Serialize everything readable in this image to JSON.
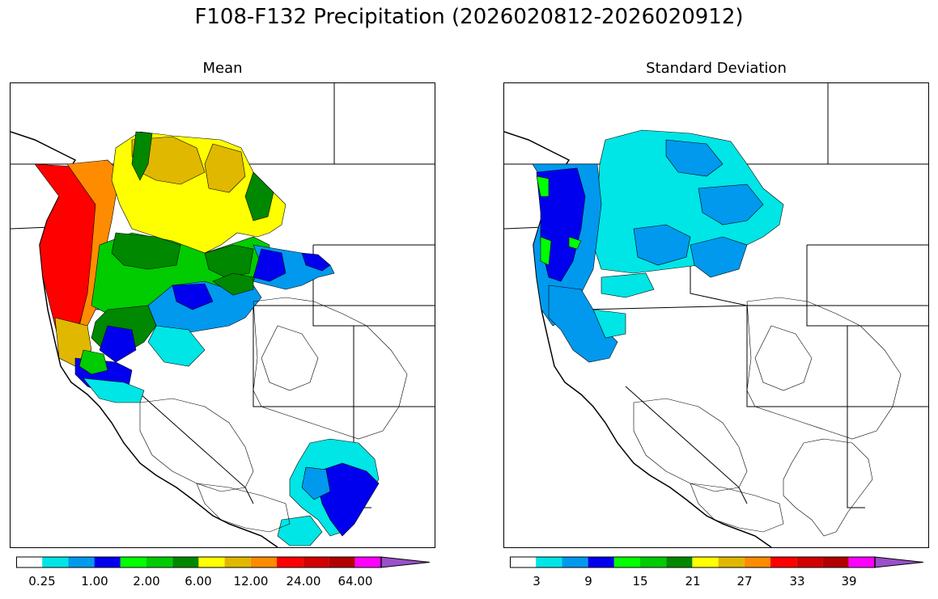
{
  "figure": {
    "title": "F108-F132 Precipitation (2026020812-2026020912)"
  },
  "panels": [
    {
      "title": "Mean",
      "colorbar": {
        "colors": [
          "#ffffff",
          "#00e5e5",
          "#0099ee",
          "#0000ee",
          "#00ff00",
          "#00cc00",
          "#008800",
          "#ffff00",
          "#e0b800",
          "#ff8c00",
          "#ff0000",
          "#d20000",
          "#b20000",
          "#ff00ff",
          "#9a50c8"
        ],
        "tick_labels": [
          "0.25",
          "1.00",
          "2.00",
          "6.00",
          "12.00",
          "24.00",
          "64.00"
        ]
      }
    },
    {
      "title": "Standard Deviation",
      "colorbar": {
        "colors": [
          "#ffffff",
          "#00e5e5",
          "#0099ee",
          "#0000ee",
          "#00ff00",
          "#00cc00",
          "#008800",
          "#ffff00",
          "#e0b800",
          "#ff8c00",
          "#ff0000",
          "#d20000",
          "#b20000",
          "#ff00ff",
          "#9a50c8"
        ],
        "tick_labels": [
          "3",
          "9",
          "15",
          "21",
          "27",
          "33",
          "39"
        ]
      }
    }
  ]
}
